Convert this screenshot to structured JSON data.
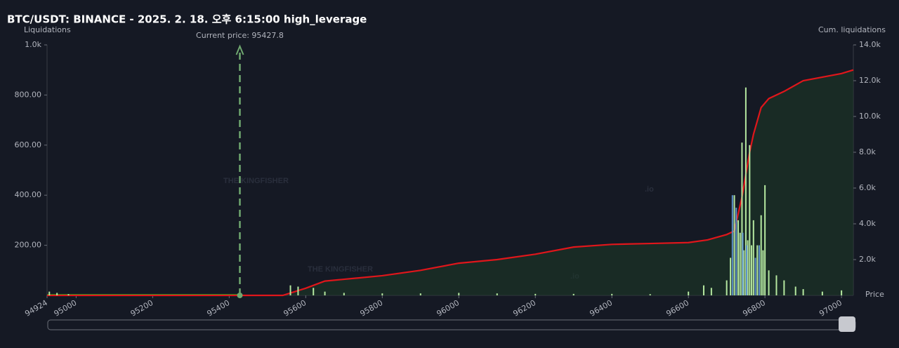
{
  "chart_data": {
    "type": "bar",
    "title": "BTC/USDT: BINANCE - 2025. 2. 18. 오후 6:15:00 high_leverage",
    "y_label": "Liquidations",
    "y2_label": "Cum. liquidations",
    "x_label": "Price",
    "annotation": "Current price: 95427.8",
    "current_price": 95427.8,
    "watermark": "THE KINGFISHER",
    "watermark_suffix": ".io",
    "xlim": [
      94924,
      97031
    ],
    "ylim": [
      0,
      1000
    ],
    "y2lim": [
      0,
      14000
    ],
    "xticks": [
      94924,
      95000,
      95200,
      95400,
      95600,
      95800,
      96000,
      96200,
      96400,
      96600,
      96800,
      97000
    ],
    "yticks": [
      {
        "value": 200,
        "label": "200.00"
      },
      {
        "value": 400,
        "label": "400.00"
      },
      {
        "value": 600,
        "label": "600.00"
      },
      {
        "value": 800,
        "label": "800.00"
      },
      {
        "value": 1000,
        "label": "1.0k"
      }
    ],
    "y2ticks": [
      {
        "value": 2000,
        "label": "2.0k"
      },
      {
        "value": 4000,
        "label": "4.0k"
      },
      {
        "value": 6000,
        "label": "6.0k"
      },
      {
        "value": 8000,
        "label": "8.0k"
      },
      {
        "value": 10000,
        "label": "10.0k"
      },
      {
        "value": 12000,
        "label": "12.0k"
      },
      {
        "value": 14000,
        "label": "14.0k"
      }
    ],
    "series": [
      {
        "type": "bar",
        "color": "#b5e8a0",
        "x": [
          94930,
          94950,
          94980,
          95560,
          95580,
          95620,
          95650,
          95700,
          95800,
          95900,
          96000,
          96100,
          96200,
          96300,
          96400,
          96500,
          96600,
          96640,
          96660,
          96700,
          96710,
          96720,
          96730,
          96735,
          96740,
          96745,
          96750,
          96755,
          96760,
          96765,
          96770,
          96780,
          96790,
          96795,
          96800,
          96810,
          96830,
          96850,
          96880,
          96900,
          96950,
          97000
        ],
        "values": [
          15,
          10,
          5,
          40,
          35,
          30,
          15,
          10,
          8,
          8,
          10,
          8,
          6,
          6,
          6,
          5,
          15,
          40,
          30,
          60,
          150,
          400,
          300,
          250,
          610,
          180,
          830,
          220,
          600,
          200,
          300,
          200,
          320,
          180,
          440,
          100,
          80,
          60,
          35,
          25,
          15,
          20
        ]
      },
      {
        "type": "bar",
        "color": "#5b8fc9",
        "x": [
          96715,
          96725,
          96742,
          96752,
          96775,
          96785
        ],
        "values": [
          400,
          350,
          250,
          200,
          150,
          200
        ]
      },
      {
        "type": "line",
        "axis": "y2",
        "color": "#e0161b",
        "x": [
          94924,
          95427.8,
          95540,
          95600,
          95650,
          95700,
          95800,
          95900,
          96000,
          96100,
          96200,
          96300,
          96400,
          96500,
          96600,
          96650,
          96700,
          96720,
          96740,
          96760,
          96770,
          96790,
          96810,
          96850,
          96900,
          96950,
          97000,
          97031
        ],
        "values": [
          0,
          0,
          0,
          400,
          800,
          900,
          1100,
          1400,
          1800,
          2000,
          2300,
          2700,
          2850,
          2900,
          2950,
          3100,
          3400,
          3600,
          5500,
          8000,
          9000,
          10500,
          11000,
          11400,
          12000,
          12200,
          12400,
          12600
        ]
      }
    ]
  }
}
